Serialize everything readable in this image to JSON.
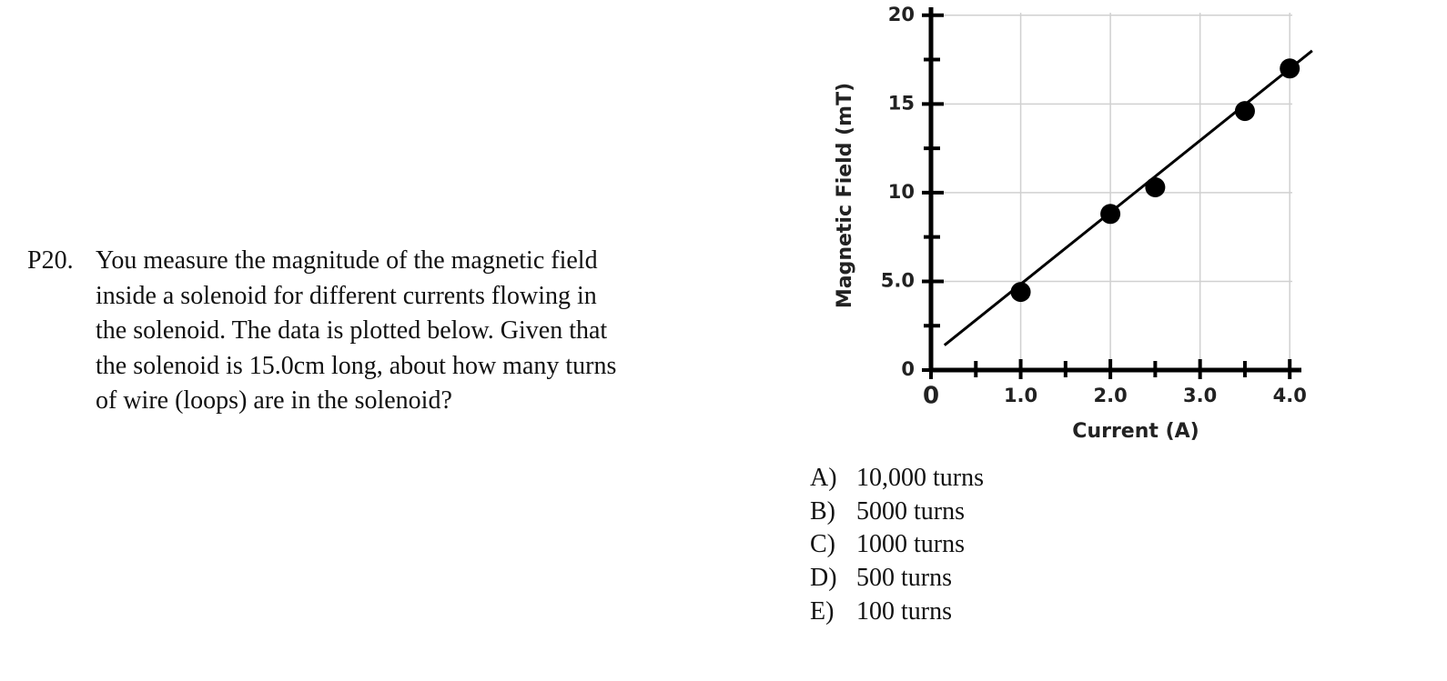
{
  "question": {
    "number": "P20.",
    "lines": [
      "You measure the magnitude of the magnetic field",
      "inside a solenoid for different currents flowing in",
      "the solenoid.  The data is plotted below. Given that",
      "the solenoid is 15.0cm long, about how many turns",
      "of wire (loops) are in the solenoid?"
    ]
  },
  "chart_data": {
    "type": "scatter",
    "x_label": "Current (A)",
    "y_label": "Magnetic Field (mT)",
    "x": [
      1.0,
      2.0,
      2.5,
      3.5,
      4.0
    ],
    "values": [
      4.4,
      8.8,
      10.3,
      14.6,
      17.0
    ],
    "color": "#000000",
    "fit_line": {
      "x": [
        0.15,
        4.25
      ],
      "values": [
        1.4,
        18.0
      ]
    },
    "xlim": [
      0,
      4.15
    ],
    "ylim": [
      0,
      20.5
    ],
    "xticks": [
      0,
      {
        "value": 1,
        "label": "1.0"
      },
      {
        "value": 2,
        "label": "2.0"
      },
      {
        "value": 3,
        "label": "3.0"
      },
      {
        "value": 4,
        "label": "4.0"
      }
    ],
    "yticks": [
      0,
      {
        "value": 5,
        "label": "5.0"
      },
      10,
      15,
      20
    ],
    "xminorticks": [
      0.5,
      1.5,
      2.5,
      3.5
    ],
    "yminorticks": [
      2.5,
      7.5,
      12.5,
      17.5
    ],
    "grid": true
  },
  "choices": [
    {
      "letter": "A)",
      "text": "10,000 turns"
    },
    {
      "letter": "B)",
      "text": "5000 turns"
    },
    {
      "letter": "C)",
      "text": "1000 turns"
    },
    {
      "letter": "D)",
      "text": "500 turns"
    },
    {
      "letter": "E)",
      "text": "100 turns"
    }
  ]
}
